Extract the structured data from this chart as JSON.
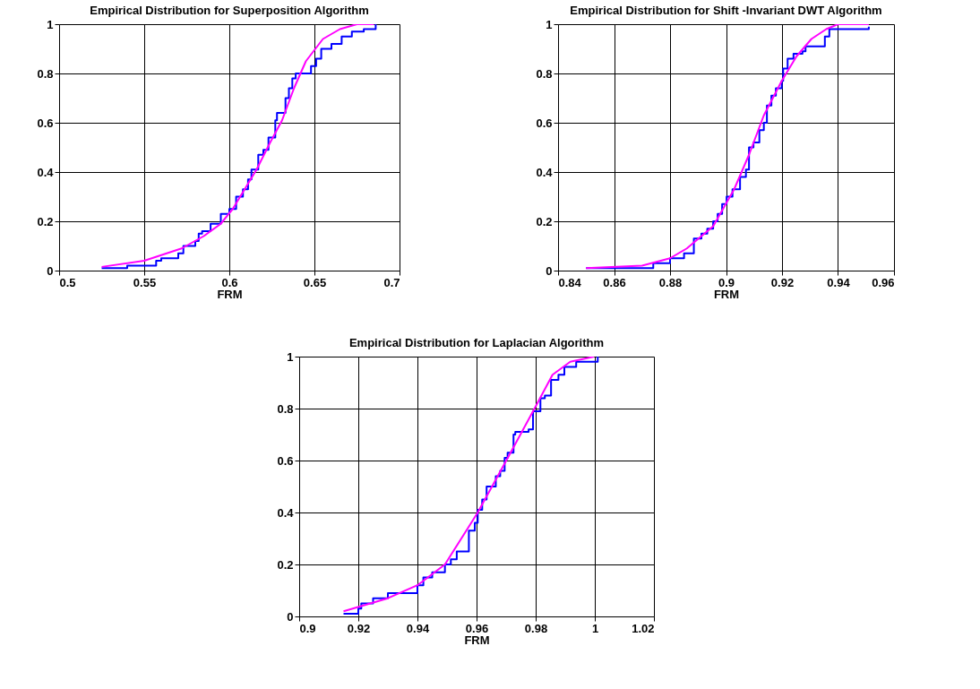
{
  "chart_data": [
    {
      "type": "line",
      "title": "Empirical    Distribution for Superposition Algorithm",
      "xlabel": "FRM",
      "xlim": [
        0.5,
        0.7
      ],
      "xticks": [
        0.5,
        0.55,
        0.6,
        0.65,
        0.7
      ],
      "ylim": [
        0,
        1
      ],
      "yticks": [
        0,
        0.2,
        0.4,
        0.6,
        0.8,
        1
      ],
      "grid": true,
      "series": [
        {
          "type": "step",
          "color": "#0000ff",
          "x": [
            0.525,
            0.54,
            0.557,
            0.56,
            0.57,
            0.573,
            0.58,
            0.582,
            0.584,
            0.589,
            0.595,
            0.6,
            0.604,
            0.608,
            0.611,
            0.613,
            0.617,
            0.62,
            0.623,
            0.627,
            0.628,
            0.633,
            0.635,
            0.637,
            0.639,
            0.644,
            0.648,
            0.651,
            0.654,
            0.66,
            0.666,
            0.672,
            0.679,
            0.686
          ],
          "values": [
            0.01,
            0.02,
            0.04,
            0.05,
            0.07,
            0.1,
            0.12,
            0.15,
            0.16,
            0.19,
            0.23,
            0.25,
            0.3,
            0.33,
            0.37,
            0.41,
            0.47,
            0.49,
            0.54,
            0.61,
            0.64,
            0.7,
            0.74,
            0.78,
            0.8,
            0.8,
            0.83,
            0.86,
            0.9,
            0.92,
            0.95,
            0.97,
            0.98,
            1.0
          ]
        },
        {
          "type": "line",
          "color": "#ff00ff",
          "x": [
            0.525,
            0.55,
            0.572,
            0.585,
            0.595,
            0.602,
            0.616,
            0.624,
            0.631,
            0.638,
            0.645,
            0.655,
            0.665,
            0.675,
            0.685
          ],
          "values": [
            0.015,
            0.04,
            0.09,
            0.14,
            0.19,
            0.25,
            0.41,
            0.52,
            0.61,
            0.74,
            0.85,
            0.94,
            0.98,
            1.0,
            1.0
          ]
        }
      ]
    },
    {
      "type": "line",
      "title": "Empirical    Distribution for Shift  -Invariant DWT Algorithm",
      "xlabel": "FRM",
      "xlim": [
        0.84,
        0.96
      ],
      "xticks": [
        0.84,
        0.86,
        0.88,
        0.9,
        0.92,
        0.94,
        0.96
      ],
      "ylim": [
        0,
        1
      ],
      "yticks": [
        0,
        0.2,
        0.4,
        0.6,
        0.8,
        1
      ],
      "grid": true,
      "series": [
        {
          "type": "step",
          "color": "#0000ff",
          "x": [
            0.85,
            0.874,
            0.88,
            0.885,
            0.8885,
            0.8912,
            0.8933,
            0.8954,
            0.897,
            0.8986,
            0.9002,
            0.9023,
            0.905,
            0.9071,
            0.9082,
            0.9098,
            0.9119,
            0.9135,
            0.9146,
            0.9162,
            0.9178,
            0.9199,
            0.9204,
            0.922,
            0.9241,
            0.9273,
            0.9284,
            0.9337,
            0.9353,
            0.9369,
            0.94,
            0.951
          ],
          "values": [
            0.01,
            0.03,
            0.05,
            0.07,
            0.13,
            0.15,
            0.17,
            0.2,
            0.23,
            0.27,
            0.3,
            0.33,
            0.38,
            0.41,
            0.5,
            0.52,
            0.57,
            0.6,
            0.67,
            0.71,
            0.74,
            0.77,
            0.82,
            0.86,
            0.88,
            0.89,
            0.91,
            0.91,
            0.95,
            0.98,
            0.98,
            0.99
          ]
        },
        {
          "type": "line",
          "color": "#ff00ff",
          "x": [
            0.85,
            0.87,
            0.88,
            0.886,
            0.8954,
            0.9029,
            0.9082,
            0.9135,
            0.9199,
            0.9252,
            0.9305,
            0.9358,
            0.94,
            0.951
          ],
          "values": [
            0.01,
            0.02,
            0.05,
            0.09,
            0.18,
            0.33,
            0.47,
            0.63,
            0.77,
            0.87,
            0.94,
            0.98,
            1.0,
            1.0
          ]
        }
      ]
    },
    {
      "type": "line",
      "title": "Empirical    Distribution for   Laplacian   Algorithm",
      "xlabel": "FRM",
      "xlim": [
        0.9,
        1.02
      ],
      "xticks": [
        0.9,
        0.92,
        0.94,
        0.96,
        0.98,
        1,
        1.02
      ],
      "ylim": [
        0,
        1
      ],
      "yticks": [
        0,
        0.2,
        0.4,
        0.6,
        0.8,
        1
      ],
      "grid": true,
      "series": [
        {
          "type": "step",
          "color": "#0000ff",
          "x": [
            0.915,
            0.92,
            0.921,
            0.925,
            0.93,
            0.94,
            0.942,
            0.945,
            0.9493,
            0.9513,
            0.9533,
            0.9574,
            0.9594,
            0.9604,
            0.9619,
            0.9634,
            0.965,
            0.9665,
            0.968,
            0.9695,
            0.9705,
            0.9725,
            0.9731,
            0.9776,
            0.9791,
            0.9816,
            0.9831,
            0.9852,
            0.9877,
            0.9897,
            0.9937,
            1.0003,
            1.001
          ],
          "values": [
            0.01,
            0.03,
            0.05,
            0.07,
            0.09,
            0.12,
            0.15,
            0.17,
            0.2,
            0.22,
            0.25,
            0.33,
            0.36,
            0.41,
            0.45,
            0.5,
            0.5,
            0.54,
            0.56,
            0.61,
            0.63,
            0.7,
            0.71,
            0.72,
            0.79,
            0.84,
            0.85,
            0.91,
            0.93,
            0.96,
            0.98,
            0.98,
            1.0
          ]
        },
        {
          "type": "line",
          "color": "#ff00ff",
          "x": [
            0.915,
            0.93,
            0.94,
            0.9493,
            0.9604,
            0.9715,
            0.9796,
            0.9857,
            0.9917,
            0.9998
          ],
          "values": [
            0.02,
            0.07,
            0.12,
            0.2,
            0.4,
            0.63,
            0.8,
            0.93,
            0.98,
            1.0
          ]
        }
      ]
    }
  ]
}
